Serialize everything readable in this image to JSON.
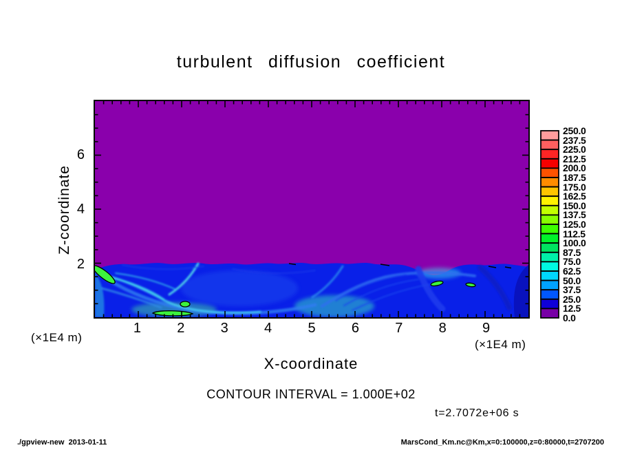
{
  "title": "turbulent diffusion coefficient",
  "axes": {
    "x": {
      "label": "X-coordinate",
      "unit": "(×1E4 m)",
      "tick_labels": [
        "1",
        "2",
        "3",
        "4",
        "5",
        "6",
        "7",
        "8",
        "9"
      ]
    },
    "y": {
      "label": "Z-coordinate",
      "unit": "(×1E4 m)",
      "tick_labels": [
        "2",
        "4",
        "6"
      ]
    }
  },
  "colorbar": {
    "labels": [
      "250.0",
      "237.5",
      "225.0",
      "212.5",
      "200.0",
      "187.5",
      "175.0",
      "162.5",
      "150.0",
      "137.5",
      "125.0",
      "112.5",
      "100.0",
      "87.5",
      "75.0",
      "62.5",
      "50.0",
      "37.5",
      "25.0",
      "12.5",
      "0.0"
    ],
    "colors": [
      "#ff9c9c",
      "#ff5f5f",
      "#ff2525",
      "#f60000",
      "#ff5200",
      "#ff8c00",
      "#ffc400",
      "#fff200",
      "#c3ff00",
      "#87ff00",
      "#3cff00",
      "#00f22a",
      "#00e360",
      "#00f0a8",
      "#00fae1",
      "#00d7ff",
      "#00a2ff",
      "#0057ff",
      "#0f00d8",
      "#7800a6"
    ]
  },
  "annotations": {
    "contour_interval": "CONTOUR INTERVAL = 1.000E+02",
    "time": "t=2.7072e+06 s"
  },
  "footer": {
    "left": "./gpview-new  2013-01-11",
    "right": "MarsCond_Km.nc@Km,x=0:100000,z=0:80000,t=2707200"
  },
  "colors": {
    "field_background": "#8a00ac",
    "mixed_layer_base": "#0920e8",
    "contour_line": "#000000",
    "text": "#000000",
    "page_background": "#ffffff"
  },
  "chart_data": {
    "type": "heatmap",
    "title": "turbulent diffusion coefficient",
    "variable": "Km",
    "xlabel": "X-coordinate",
    "ylabel": "Z-coordinate",
    "unit_note": "(×1E4 m)",
    "xlim": [
      0,
      10
    ],
    "ylim": [
      0,
      8
    ],
    "x_ticks": [
      1,
      2,
      3,
      4,
      5,
      6,
      7,
      8,
      9
    ],
    "y_ticks": [
      2,
      4,
      6
    ],
    "x_minor_step": 0.2,
    "y_minor_step": 0.5,
    "color_levels_min": 0,
    "color_levels_max": 250,
    "color_level_step": 12.5,
    "contour_interval": 100,
    "time_annotation": "t=2.7072e+06 s",
    "colorbar_position": "right",
    "grid": false,
    "description": "Shaded contour plot of turbulent diffusion coefficient Km. Field is ~0 (purple, lowest color bin) everywhere above z≈2×1E4 m. Below z≈2×1E4 m lies a turbulent boundary layer shaded blue–cyan (Km≈12.5–100) with filament/swirl structures; small green patches exceeding the 100 contour (black outlines) occur near (x≈0.2,z≈1.8), (x≈2.1,z≈0.15), (x≈2.1,z≈0.35) and along the wavy layer top near x≈5.7–6.6 and x≈8.6–9.6.",
    "approx_field": {
      "x_centers": [
        0.5,
        1.5,
        2.5,
        3.5,
        4.5,
        5.5,
        6.5,
        7.5,
        8.5,
        9.5
      ],
      "rows": [
        {
          "z": 7.0,
          "values": [
            0,
            0,
            0,
            0,
            0,
            0,
            0,
            0,
            0,
            0
          ]
        },
        {
          "z": 5.0,
          "values": [
            0,
            0,
            0,
            0,
            0,
            0,
            0,
            0,
            0,
            0
          ]
        },
        {
          "z": 3.0,
          "values": [
            0,
            0,
            0,
            0,
            0,
            0,
            0,
            0,
            0,
            0
          ]
        },
        {
          "z": 1.8,
          "values": [
            105,
            35,
            30,
            30,
            35,
            40,
            60,
            45,
            70,
            40
          ]
        },
        {
          "z": 1.0,
          "values": [
            55,
            45,
            40,
            50,
            45,
            40,
            35,
            35,
            45,
            30
          ]
        },
        {
          "z": 0.3,
          "values": [
            65,
            105,
            70,
            85,
            70,
            55,
            45,
            40,
            50,
            35
          ]
        }
      ]
    }
  }
}
